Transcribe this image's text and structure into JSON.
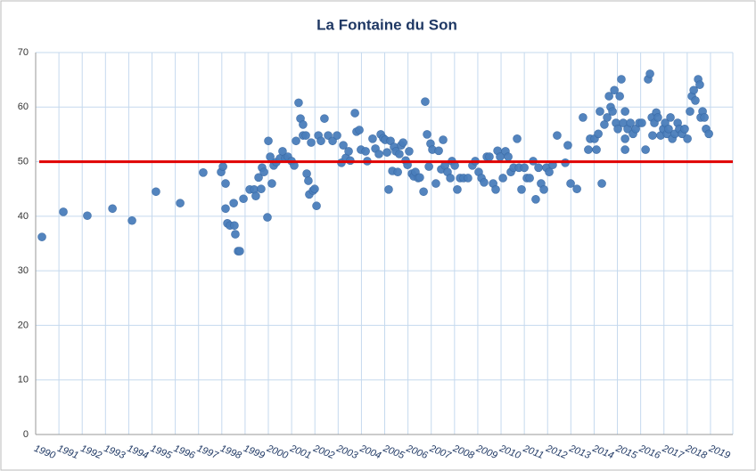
{
  "chart_data": {
    "type": "scatter",
    "title": "La Fontaine du Son",
    "xlim": [
      1990,
      2019.96
    ],
    "xticks": [
      1990,
      1991,
      1992,
      1993,
      1994,
      1995,
      1996,
      1997,
      1998,
      1999,
      2000,
      2001,
      2002,
      2003,
      2004,
      2005,
      2006,
      2007,
      2008,
      2009,
      2010,
      2011,
      2012,
      2013,
      2014,
      2015,
      2016,
      2017,
      2018,
      2019
    ],
    "ylim": [
      0,
      70
    ],
    "yticks": [
      0,
      10,
      20,
      30,
      40,
      50,
      60,
      70
    ],
    "grid": true,
    "reference_line": {
      "value": 50,
      "color": "#e00000"
    },
    "series": [
      {
        "color": "#4a7ebb",
        "x": [
          1990.27,
          1991.19,
          1992.22,
          1993.3,
          1994.14,
          1995.17,
          1996.21,
          1997.2,
          1997.97,
          1998.05,
          1998.16,
          1998.16,
          1998.24,
          1998.35,
          1998.51,
          1998.54,
          1998.58,
          1998.7,
          1998.77,
          1998.93,
          1999.2,
          1999.39,
          1999.46,
          1999.58,
          1999.69,
          1999.73,
          1999.81,
          1999.96,
          2000.0,
          2000.08,
          2000.15,
          2000.23,
          2000.34,
          2000.5,
          2000.61,
          2000.73,
          2000.84,
          2001.0,
          2001.11,
          2001.19,
          2001.3,
          2001.38,
          2001.49,
          2001.49,
          2001.61,
          2001.65,
          2001.72,
          2001.76,
          2001.84,
          2001.92,
          2001.99,
          2002.07,
          2002.15,
          2002.26,
          2002.41,
          2002.57,
          2002.76,
          2002.95,
          2003.14,
          2003.22,
          2003.33,
          2003.45,
          2003.52,
          2003.72,
          2003.79,
          2003.91,
          2003.98,
          2004.18,
          2004.25,
          2004.48,
          2004.6,
          2004.75,
          2004.83,
          2004.94,
          2005.02,
          2005.1,
          2005.17,
          2005.25,
          2005.33,
          2005.4,
          2005.48,
          2005.56,
          2005.63,
          2005.71,
          2005.79,
          2005.9,
          2005.98,
          2006.05,
          2006.17,
          2006.25,
          2006.32,
          2006.44,
          2006.51,
          2006.67,
          2006.74,
          2006.82,
          2006.9,
          2006.97,
          2007.05,
          2007.2,
          2007.32,
          2007.43,
          2007.51,
          2007.59,
          2007.7,
          2007.82,
          2007.89,
          2008.01,
          2008.12,
          2008.24,
          2008.39,
          2008.58,
          2008.77,
          2008.89,
          2009.04,
          2009.16,
          2009.27,
          2009.39,
          2009.5,
          2009.66,
          2009.77,
          2009.85,
          2009.96,
          2010.08,
          2010.19,
          2010.31,
          2010.42,
          2010.54,
          2010.69,
          2010.77,
          2010.88,
          2011.0,
          2011.11,
          2011.23,
          2011.38,
          2011.49,
          2011.61,
          2011.72,
          2011.84,
          2011.95,
          2012.07,
          2012.22,
          2012.41,
          2012.76,
          2012.87,
          2012.99,
          2013.26,
          2013.52,
          2013.75,
          2013.83,
          2014.02,
          2014.1,
          2014.18,
          2014.25,
          2014.33,
          2014.44,
          2014.56,
          2014.64,
          2014.71,
          2014.79,
          2014.87,
          2014.94,
          2015.02,
          2015.1,
          2015.17,
          2015.25,
          2015.33,
          2015.33,
          2015.33,
          2015.44,
          2015.56,
          2015.67,
          2015.79,
          2015.94,
          2016.05,
          2016.21,
          2016.32,
          2016.4,
          2016.48,
          2016.51,
          2016.59,
          2016.67,
          2016.74,
          2016.86,
          2016.97,
          2017.05,
          2017.13,
          2017.2,
          2017.28,
          2017.36,
          2017.47,
          2017.59,
          2017.66,
          2017.78,
          2017.89,
          2018.01,
          2018.12,
          2018.2,
          2018.28,
          2018.35,
          2018.47,
          2018.54,
          2018.58,
          2018.66,
          2018.74,
          2018.81,
          2018.93
        ],
        "values": [
          36.2,
          40.8,
          40.1,
          41.4,
          39.2,
          44.5,
          42.4,
          48,
          48.1,
          49.1,
          46,
          41.4,
          38.7,
          38.3,
          42.4,
          38.3,
          36.7,
          33.6,
          33.6,
          43.2,
          44.9,
          44.9,
          43.7,
          47.1,
          45,
          48.9,
          48.1,
          39.8,
          53.8,
          50.9,
          46,
          49.3,
          49.9,
          50.6,
          51.9,
          50.6,
          50.9,
          50.1,
          49.3,
          53.8,
          60.8,
          57.9,
          56.8,
          54.8,
          54.8,
          47.8,
          46.5,
          44,
          53.5,
          44.7,
          45,
          41.9,
          54.8,
          53.8,
          57.9,
          54.8,
          53.8,
          54.8,
          49.8,
          53,
          50.7,
          51.9,
          50.2,
          58.9,
          55.5,
          55.8,
          52.2,
          51.9,
          50.1,
          54.2,
          52.4,
          51.4,
          55,
          54.3,
          54,
          51.7,
          44.9,
          53.8,
          48.3,
          52.7,
          51.9,
          48.1,
          51.4,
          53,
          53.5,
          50.2,
          49.4,
          51.9,
          47.8,
          47.3,
          48.1,
          47,
          47.1,
          44.5,
          61,
          55,
          49.1,
          53.3,
          52.2,
          46,
          52,
          48.6,
          54,
          49.3,
          48.1,
          47,
          50.1,
          49.3,
          44.9,
          47,
          47,
          47,
          49.3,
          50.1,
          48.1,
          47,
          46.2,
          50.9,
          50.9,
          46,
          44.9,
          52,
          50.9,
          47,
          51.9,
          50.9,
          48.1,
          48.9,
          54.2,
          48.9,
          44.9,
          48.9,
          47,
          47,
          50.1,
          43.1,
          48.9,
          46,
          44.9,
          48.9,
          48.1,
          49.4,
          54.8,
          49.8,
          53,
          46,
          45,
          58.1,
          52.2,
          54.2,
          54.2,
          52.2,
          55.1,
          59.2,
          46,
          56.8,
          58.1,
          62,
          60,
          59.2,
          63.1,
          57.1,
          56,
          62,
          65.1,
          57.1,
          59.2,
          54.2,
          52.2,
          56,
          57.1,
          55.1,
          56,
          57.1,
          57.1,
          52.2,
          65.1,
          66.1,
          58.1,
          54.8,
          57.1,
          59,
          58.1,
          54.8,
          56,
          57.1,
          55.1,
          56,
          58.1,
          54.2,
          55.1,
          57.1,
          56,
          55.1,
          56,
          54.2,
          59.2,
          62,
          63.1,
          61.2,
          65.1,
          64.1,
          58.1,
          59.2,
          58.1,
          56,
          55.1
        ]
      }
    ]
  }
}
